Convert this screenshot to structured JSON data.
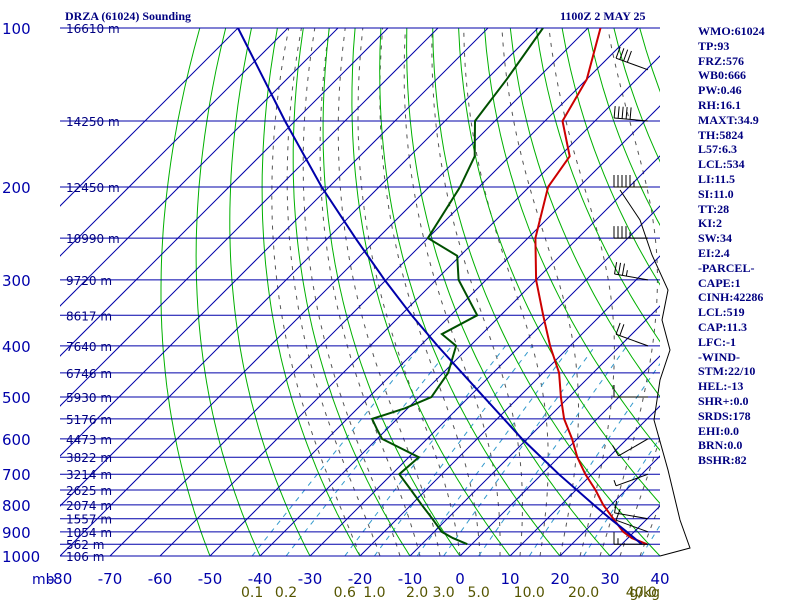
{
  "header": {
    "title": "DRZA (61024) Sounding",
    "timestamp": "1100Z  2 MAY 25"
  },
  "indices": [
    "WMO:61024",
    "TP:93",
    "FRZ:576",
    "WB0:666",
    "PW:0.46",
    "RH:16.1",
    "MAXT:34.9",
    "TH:5824",
    "L57:6.3",
    "LCL:534",
    "LI:11.5",
    "SI:11.0",
    "TT:28",
    "KI:2",
    "SW:34",
    "EI:2.4",
    "-PARCEL-",
    "CAPE:1",
    "CINH:42286",
    "LCL:519",
    "CAP:11.3",
    "LFC:-1",
    "-WIND-",
    "STM:22/10",
    "HEL:-13",
    "SHR+:0.0",
    "SRDS:178",
    "EHI:0.0",
    "BRN:0.0",
    "BSHR:82"
  ],
  "colors": {
    "temperature": "#cc0000",
    "dewpoint": "#005000",
    "parcel": "#0000aa",
    "isobar_isotherm": "#0000aa",
    "dry_adiabat": "#00b000",
    "moist_adiabat": "#555555",
    "mixing_ratio": "#3399cc",
    "height_label": "#000080",
    "mixing_ratio_label": "#555500"
  },
  "chart_data": {
    "type": "line",
    "subtype": "skew-T log-p sounding",
    "x_axis": {
      "unit_label": "mb",
      "ticks": [
        "-80",
        "-70",
        "-60",
        "-50",
        "-40",
        "-30",
        "-20",
        "-10",
        "0",
        "10",
        "20",
        "30",
        "40"
      ],
      "range": [
        -80,
        40
      ]
    },
    "y_axis": {
      "scale": "log",
      "range": [
        1000,
        100
      ],
      "ticks": [
        "100",
        "200",
        "300",
        "400",
        "500",
        "600",
        "700",
        "800",
        "900",
        "1000"
      ]
    },
    "height_labels": [
      {
        "p": 100,
        "label": "16610 m"
      },
      {
        "p": 150,
        "label": "14250 m"
      },
      {
        "p": 200,
        "label": "12450 m"
      },
      {
        "p": 250,
        "label": "10990 m"
      },
      {
        "p": 300,
        "label": "9720 m"
      },
      {
        "p": 350,
        "label": "8617 m"
      },
      {
        "p": 400,
        "label": "7640 m"
      },
      {
        "p": 450,
        "label": "6746 m"
      },
      {
        "p": 500,
        "label": "5930 m"
      },
      {
        "p": 550,
        "label": "5176 m"
      },
      {
        "p": 600,
        "label": "4473 m"
      },
      {
        "p": 650,
        "label": "3822 m"
      },
      {
        "p": 700,
        "label": "3214 m"
      },
      {
        "p": 750,
        "label": "2625 m"
      },
      {
        "p": 800,
        "label": "2074 m"
      },
      {
        "p": 850,
        "label": "1557 m"
      },
      {
        "p": 900,
        "label": "1054 m"
      },
      {
        "p": 950,
        "label": "562 m"
      },
      {
        "p": 1000,
        "label": "106 m"
      }
    ],
    "mixing_ratio_labels": [
      {
        "w": 0.1,
        "label": "0.1"
      },
      {
        "w": 0.2,
        "label": "0.2"
      },
      {
        "w": 0.6,
        "label": "0.6"
      },
      {
        "w": 1.0,
        "label": "1.0"
      },
      {
        "w": 2.0,
        "label": "2.0"
      },
      {
        "w": 3.0,
        "label": "3.0"
      },
      {
        "w": 5.0,
        "label": "5.0"
      },
      {
        "w": 10.0,
        "label": "10.0"
      },
      {
        "w": 20.0,
        "label": "20.0"
      },
      {
        "w": 40.0,
        "label": "40.0"
      }
    ],
    "mixing_ratio_unit": "g/kg",
    "series": [
      {
        "name": "temperature",
        "points": [
          [
            950,
            35.0
          ],
          [
            925,
            30.8
          ],
          [
            900,
            27.8
          ],
          [
            850,
            23.2
          ],
          [
            800,
            18.4
          ],
          [
            750,
            13.9
          ],
          [
            700,
            8.7
          ],
          [
            650,
            3.7
          ],
          [
            600,
            -1.0
          ],
          [
            550,
            -6.6
          ],
          [
            500,
            -11.6
          ],
          [
            450,
            -16.8
          ],
          [
            400,
            -24.0
          ],
          [
            350,
            -31.5
          ],
          [
            300,
            -40.0
          ],
          [
            250,
            -48.5
          ],
          [
            200,
            -56.2
          ],
          [
            175,
            -58.0
          ],
          [
            150,
            -66.5
          ],
          [
            125,
            -70.0
          ],
          [
            100,
            -77.5
          ]
        ]
      },
      {
        "name": "dewpoint",
        "points": [
          [
            950,
            -0.9
          ],
          [
            925,
            -5.0
          ],
          [
            900,
            -8.5
          ],
          [
            850,
            -13.0
          ],
          [
            800,
            -17.9
          ],
          [
            750,
            -23.0
          ],
          [
            700,
            -28.5
          ],
          [
            650,
            -28.0
          ],
          [
            600,
            -39.0
          ],
          [
            575,
            -42.0
          ],
          [
            550,
            -45.0
          ],
          [
            525,
            -40.5
          ],
          [
            500,
            -37.5
          ],
          [
            450,
            -39.0
          ],
          [
            400,
            -42.8
          ],
          [
            380,
            -48.0
          ],
          [
            350,
            -44.7
          ],
          [
            300,
            -55.5
          ],
          [
            270,
            -60.6
          ],
          [
            250,
            -70.0
          ],
          [
            200,
            -73.8
          ],
          [
            175,
            -77.0
          ],
          [
            150,
            -84.0
          ],
          [
            125,
            -86.0
          ],
          [
            100,
            -89.0
          ]
        ]
      },
      {
        "name": "parcel",
        "points": [
          [
            950,
            34.0
          ],
          [
            900,
            28.5
          ],
          [
            850,
            22.6
          ],
          [
            800,
            16.5
          ],
          [
            700,
            3.4
          ],
          [
            600,
            -11.0
          ],
          [
            500,
            -27.0
          ],
          [
            400,
            -46.5
          ],
          [
            350,
            -57.8
          ],
          [
            300,
            -70.3
          ],
          [
            250,
            -84.5
          ],
          [
            200,
            -101.5
          ],
          [
            150,
            -122.0
          ],
          [
            100,
            -150.0
          ]
        ]
      }
    ],
    "wind_barbs": [
      {
        "p": 950,
        "dir": 270,
        "spd": 15
      },
      {
        "p": 900,
        "dir": 290,
        "spd": 10
      },
      {
        "p": 850,
        "dir": 280,
        "spd": 10
      },
      {
        "p": 700,
        "dir": 250,
        "spd": 5
      },
      {
        "p": 600,
        "dir": 240,
        "spd": 10
      },
      {
        "p": 500,
        "dir": 270,
        "spd": 10
      },
      {
        "p": 400,
        "dir": 290,
        "spd": 20
      },
      {
        "p": 300,
        "dir": 280,
        "spd": 35
      },
      {
        "p": 250,
        "dir": 270,
        "spd": 45
      },
      {
        "p": 200,
        "dir": 270,
        "spd": 55
      },
      {
        "p": 150,
        "dir": 275,
        "spd": 50
      },
      {
        "p": 120,
        "dir": 290,
        "spd": 40
      }
    ]
  }
}
